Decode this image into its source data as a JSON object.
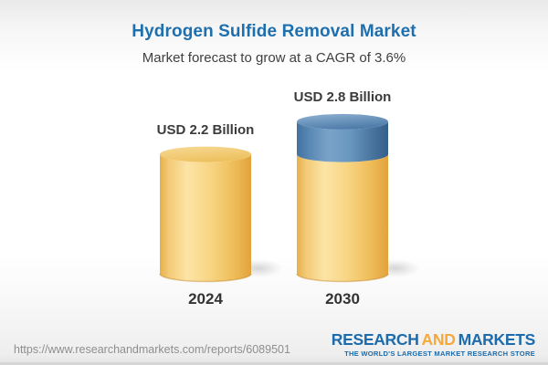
{
  "header": {
    "title": "Hydrogen Sulfide Removal Market",
    "subtitle": "Market forecast to grow at a CAGR of 3.6%"
  },
  "chart_data": {
    "type": "bar",
    "variant": "3d-cylinder-column",
    "title": "Hydrogen Sulfide Removal Market",
    "subtitle": "Market forecast to grow at a CAGR of 3.6%",
    "unit": "USD Billion",
    "cagr_percent": 3.6,
    "categories": [
      "2024",
      "2030"
    ],
    "values": [
      2.2,
      2.8
    ],
    "value_labels": [
      "USD 2.2 Billion",
      "USD 2.8 Billion"
    ],
    "ylim": [
      0,
      2.8
    ],
    "grid": false,
    "legend": false,
    "series": [
      {
        "category": "2024",
        "total": 2.2,
        "label": "USD 2.2 Billion",
        "segments": [
          {
            "name": "base",
            "value": 2.2,
            "color": "gold"
          }
        ]
      },
      {
        "category": "2030",
        "total": 2.8,
        "label": "USD 2.8 Billion",
        "segments": [
          {
            "name": "base",
            "value": 2.2,
            "color": "gold"
          },
          {
            "name": "growth",
            "value": 0.6,
            "color": "blue"
          }
        ]
      }
    ],
    "colors": {
      "base_segment": "#f6d183",
      "growth_segment": "#6595bf"
    }
  },
  "footer": {
    "url": "https://www.researchandmarkets.com/reports/6089501",
    "logo": {
      "word1": "RESEARCH",
      "word2": "AND",
      "word3": "MARKETS",
      "tagline": "THE WORLD'S LARGEST MARKET RESEARCH STORE"
    }
  },
  "colors": {
    "title_blue": "#1e6fae",
    "text_dark": "#3f3f3f",
    "logo_blue": "#1c6bad",
    "logo_orange": "#f5a93b",
    "url_gray": "#8e8e8e"
  }
}
